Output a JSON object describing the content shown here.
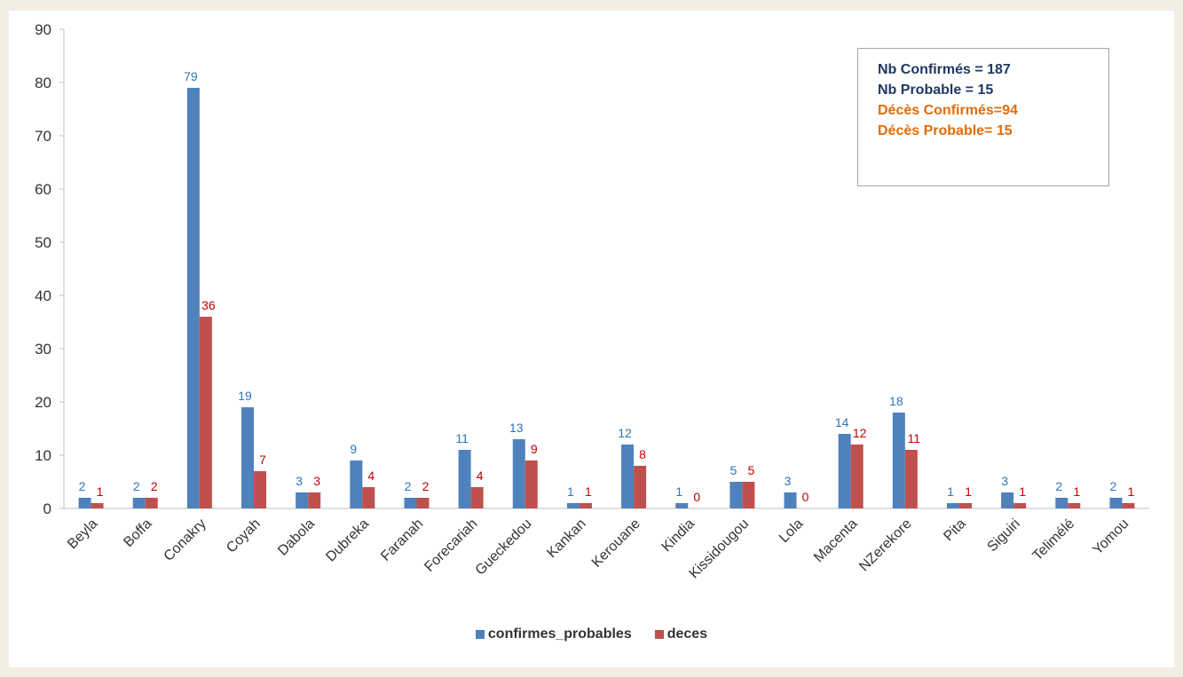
{
  "chart_data": {
    "type": "bar",
    "categories": [
      "Beyla",
      "Boffa",
      "Conakry",
      "Coyah",
      "Dabola",
      "Dubreka",
      "Faranah",
      "Forecariah",
      "Gueckedou",
      "Kankan",
      "Kerouane",
      "Kindia",
      "Kissidougou",
      "Lola",
      "Macenta",
      "NZerekore",
      "Pita",
      "Siguiri",
      "Telimélé",
      "Yomou"
    ],
    "series": [
      {
        "name": "confirmes_probables",
        "color": "#4f81bd",
        "label_color": "#2e75b6",
        "values": [
          2,
          2,
          79,
          19,
          3,
          9,
          2,
          11,
          13,
          1,
          12,
          1,
          5,
          3,
          14,
          18,
          1,
          3,
          2,
          2
        ]
      },
      {
        "name": "deces",
        "color": "#c0504d",
        "label_color": "#c00000",
        "values": [
          1,
          2,
          36,
          7,
          3,
          4,
          2,
          4,
          9,
          1,
          8,
          0,
          5,
          0,
          12,
          11,
          1,
          1,
          1,
          1
        ]
      }
    ],
    "yticks": [
      0,
      10,
      20,
      30,
      40,
      50,
      60,
      70,
      80,
      90
    ],
    "ylim": [
      0,
      90
    ],
    "legend_position": "bottom"
  },
  "info_box": {
    "lines": [
      {
        "text": "Nb Confirmés = 187",
        "color": "#1f3864"
      },
      {
        "text": "Nb Probable = 15",
        "color": "#1f3864"
      },
      {
        "text": "Décès Confirmés=94",
        "color": "#e36c09"
      },
      {
        "text": "Décès Probable= 15",
        "color": "#e36c09"
      }
    ]
  }
}
